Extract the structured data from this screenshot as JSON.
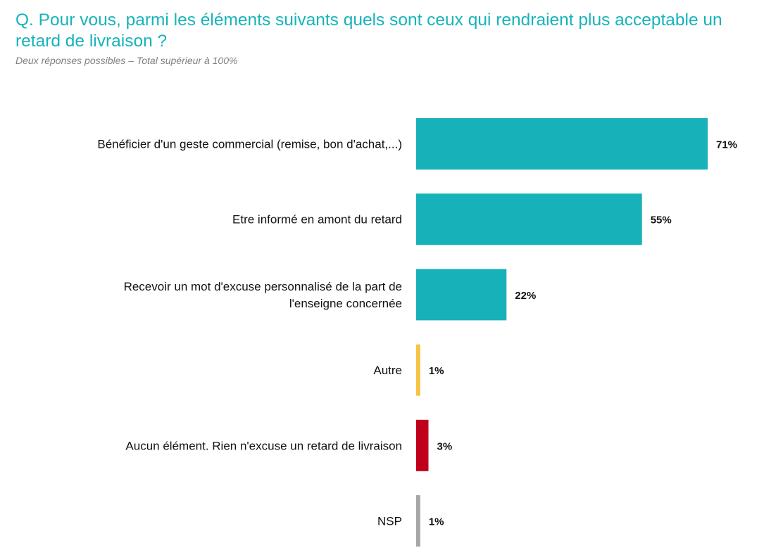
{
  "header": {
    "question": "Q. Pour vous, parmi les éléments suivants quels sont ceux qui rendraient plus acceptable un retard de livraison ?",
    "subtitle": "Deux réponses possibles – Total supérieur à 100%"
  },
  "chart_data": {
    "type": "bar",
    "orientation": "horizontal",
    "unit": "%",
    "xlim": [
      0,
      71
    ],
    "grid": false,
    "legend": "none",
    "categories": [
      [
        "Bénéficier d'un geste commercial (remise, bon d'achat,...)"
      ],
      [
        "Etre informé en amont du retard"
      ],
      [
        "Recevoir un mot d'excuse personnalisé de la part de",
        "l'enseigne concernée"
      ],
      [
        "Autre"
      ],
      [
        "Aucun élément. Rien n'excuse un retard de livraison"
      ],
      [
        "NSP"
      ]
    ],
    "values": [
      71,
      55,
      22,
      1,
      3,
      1
    ],
    "value_labels": [
      "71%",
      "55%",
      "22%",
      "1%",
      "3%",
      "1%"
    ],
    "colors": [
      "#17b1b9",
      "#17b1b9",
      "#17b1b9",
      "#f6c344",
      "#c0001a",
      "#a6a6a6"
    ]
  }
}
